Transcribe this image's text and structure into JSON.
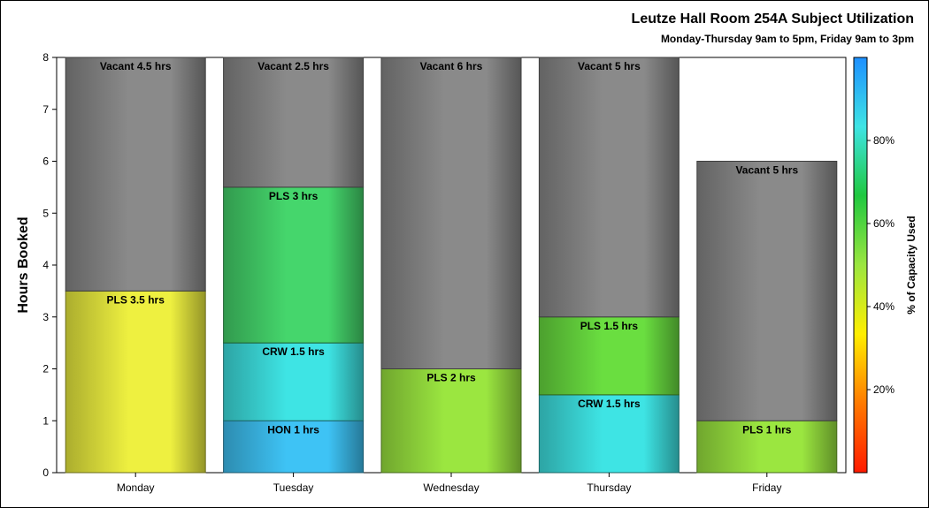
{
  "chart_data": {
    "type": "bar",
    "stacked": true,
    "title": "Leutze Hall Room 254A Subject Utilization",
    "subtitle": "Monday-Thursday 9am to 5pm, Friday 9am to 3pm",
    "xlabel": "",
    "ylabel": "Hours Booked",
    "ylim": [
      0,
      8
    ],
    "yticks": [
      "0",
      "1",
      "2",
      "3",
      "4",
      "5",
      "6",
      "7",
      "8"
    ],
    "categories": [
      "Monday",
      "Tuesday",
      "Wednesday",
      "Thursday",
      "Friday"
    ],
    "bars": [
      {
        "category": "Monday",
        "segments": [
          {
            "label": "PLS 3.5 hrs",
            "value": 3.5,
            "color": "#eef040"
          },
          {
            "label": "Vacant 4.5 hrs",
            "value": 4.5,
            "color": "#8a8a8a"
          }
        ]
      },
      {
        "category": "Tuesday",
        "segments": [
          {
            "label": "HON 1 hrs",
            "value": 1,
            "color": "#3ec3f5"
          },
          {
            "label": "CRW 1.5 hrs",
            "value": 1.5,
            "color": "#3ee4e4"
          },
          {
            "label": "PLS 3 hrs",
            "value": 3,
            "color": "#45d66c"
          },
          {
            "label": "Vacant 2.5 hrs",
            "value": 2.5,
            "color": "#8a8a8a"
          }
        ]
      },
      {
        "category": "Wednesday",
        "segments": [
          {
            "label": "PLS 2 hrs",
            "value": 2,
            "color": "#9be640"
          },
          {
            "label": "Vacant 6 hrs",
            "value": 6,
            "color": "#8a8a8a"
          }
        ]
      },
      {
        "category": "Thursday",
        "segments": [
          {
            "label": "CRW 1.5 hrs",
            "value": 1.5,
            "color": "#3ee4e4"
          },
          {
            "label": "PLS 1.5 hrs",
            "value": 1.5,
            "color": "#6ade40"
          },
          {
            "label": "Vacant 5 hrs",
            "value": 5,
            "color": "#8a8a8a"
          }
        ]
      },
      {
        "category": "Friday",
        "segments": [
          {
            "label": "PLS 1 hrs",
            "value": 1,
            "color": "#9be640"
          },
          {
            "label": "Vacant 5 hrs",
            "value": 5,
            "color": "#8a8a8a"
          }
        ]
      }
    ],
    "colorbar": {
      "title": "% of Capacity Used",
      "range": [
        0,
        100
      ],
      "ticks": [
        20,
        40,
        60,
        80
      ],
      "tick_labels": [
        "20%",
        "40%",
        "60%",
        "80%"
      ],
      "stops": [
        "#ff1a00",
        "#ff7a00",
        "#ffee00",
        "#9be640",
        "#20c840",
        "#3ee4e4",
        "#1e90ff"
      ]
    }
  }
}
